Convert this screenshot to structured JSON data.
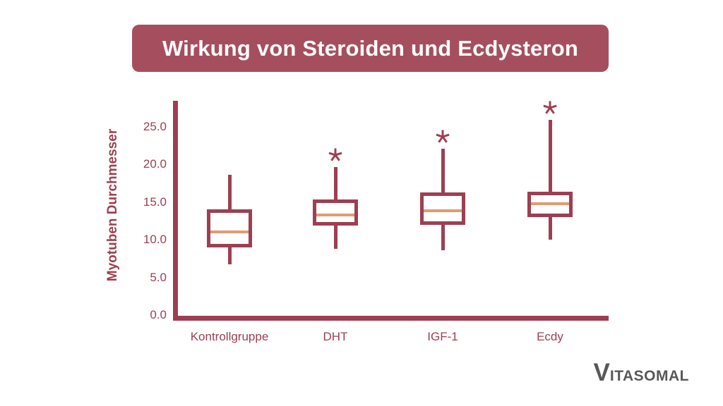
{
  "title": "Wirkung von Steroiden und Ecdysteron",
  "logo": {
    "first": "V",
    "rest": "ITASOMAL"
  },
  "colors": {
    "accent": "#9d3f52",
    "title_bg": "#a54f5e",
    "median": "#e29a71",
    "logo": "#58585a",
    "background": "#ffffff"
  },
  "chart_data": {
    "type": "boxplot",
    "title": "Wirkung von Steroiden und Ecdysteron",
    "xlabel": "",
    "ylabel": "Myotuben Durchmesser",
    "ylim": [
      0,
      28.5
    ],
    "yticks": [
      25,
      20,
      15,
      10,
      5,
      0
    ],
    "ytick_labels": [
      "25.0",
      "20.0",
      "15.0",
      "10.0",
      "5.0",
      "0.0"
    ],
    "grid": false,
    "categories": [
      "Kontrollgruppe",
      "DHT",
      "IGF-1",
      "Ecdy"
    ],
    "series": [
      {
        "category": "Kontrollgruppe",
        "whisker_low": 6.7,
        "q1": 9.0,
        "median": 11.0,
        "q3": 14.0,
        "whisker_high": 18.6,
        "significant": false,
        "marker": ""
      },
      {
        "category": "DHT",
        "whisker_low": 8.8,
        "q1": 11.9,
        "median": 13.3,
        "q3": 15.3,
        "whisker_high": 19.6,
        "significant": true,
        "marker": "*"
      },
      {
        "category": "IGF-1",
        "whisker_low": 8.6,
        "q1": 12.0,
        "median": 13.8,
        "q3": 16.3,
        "whisker_high": 22.1,
        "significant": true,
        "marker": "*"
      },
      {
        "category": "Ecdy",
        "whisker_low": 10.0,
        "q1": 13.0,
        "median": 14.8,
        "q3": 16.4,
        "whisker_high": 25.9,
        "significant": true,
        "marker": "*"
      }
    ]
  }
}
